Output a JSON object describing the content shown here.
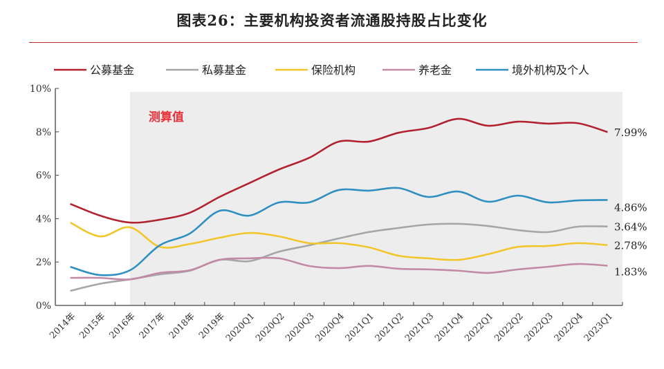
{
  "chart_data": {
    "type": "line",
    "title": "图表26：主要机构投资者流通股持股占比变化",
    "categories": [
      "2014年",
      "2015年",
      "2016年",
      "2017年",
      "2018年",
      "2019年",
      "2020Q1",
      "2020Q2",
      "2020Q3",
      "2020Q4",
      "2021Q1",
      "2021Q2",
      "2021Q3",
      "2021Q4",
      "2022Q1",
      "2022Q2",
      "2022Q3",
      "2022Q4",
      "2023Q1"
    ],
    "ylim": [
      0,
      10
    ],
    "yticks": [
      "0%",
      "2%",
      "4%",
      "6%",
      "8%",
      "10%"
    ],
    "legend_position": "top",
    "shaded_region": {
      "from": "2016年",
      "to": "2023Q1",
      "label": "测算值",
      "label_color": "#e8333a"
    },
    "series": [
      {
        "name": "公募基金",
        "color": "#b2222e",
        "end_label": "7.99%",
        "values": [
          4.68,
          4.14,
          3.82,
          3.95,
          4.27,
          5.0,
          5.64,
          6.27,
          6.8,
          7.55,
          7.55,
          7.96,
          8.18,
          8.6,
          8.28,
          8.47,
          8.38,
          8.4,
          7.99
        ]
      },
      {
        "name": "私募基金",
        "color": "#a6a6a6",
        "end_label": "3.64%",
        "values": [
          0.67,
          1.0,
          1.2,
          1.43,
          1.6,
          2.1,
          2.04,
          2.48,
          2.77,
          3.09,
          3.38,
          3.57,
          3.73,
          3.76,
          3.66,
          3.47,
          3.38,
          3.63,
          3.64
        ]
      },
      {
        "name": "保险机构",
        "color": "#f2c62b",
        "end_label": "2.78%",
        "values": [
          3.82,
          3.18,
          3.6,
          2.7,
          2.83,
          3.12,
          3.34,
          3.18,
          2.87,
          2.87,
          2.68,
          2.29,
          2.17,
          2.1,
          2.36,
          2.7,
          2.74,
          2.87,
          2.78
        ]
      },
      {
        "name": "养老金",
        "color": "#c38aa5",
        "end_label": "1.83%",
        "values": [
          1.27,
          1.27,
          1.2,
          1.5,
          1.62,
          2.1,
          2.17,
          2.17,
          1.82,
          1.72,
          1.82,
          1.69,
          1.66,
          1.6,
          1.5,
          1.66,
          1.78,
          1.91,
          1.83
        ]
      },
      {
        "name": "境外机构及个人",
        "color": "#2f8fc0",
        "end_label": "4.86%",
        "values": [
          1.78,
          1.4,
          1.62,
          2.77,
          3.31,
          4.36,
          4.14,
          4.75,
          4.75,
          5.32,
          5.29,
          5.41,
          5.0,
          5.25,
          4.78,
          5.06,
          4.75,
          4.84,
          4.86
        ]
      }
    ]
  }
}
